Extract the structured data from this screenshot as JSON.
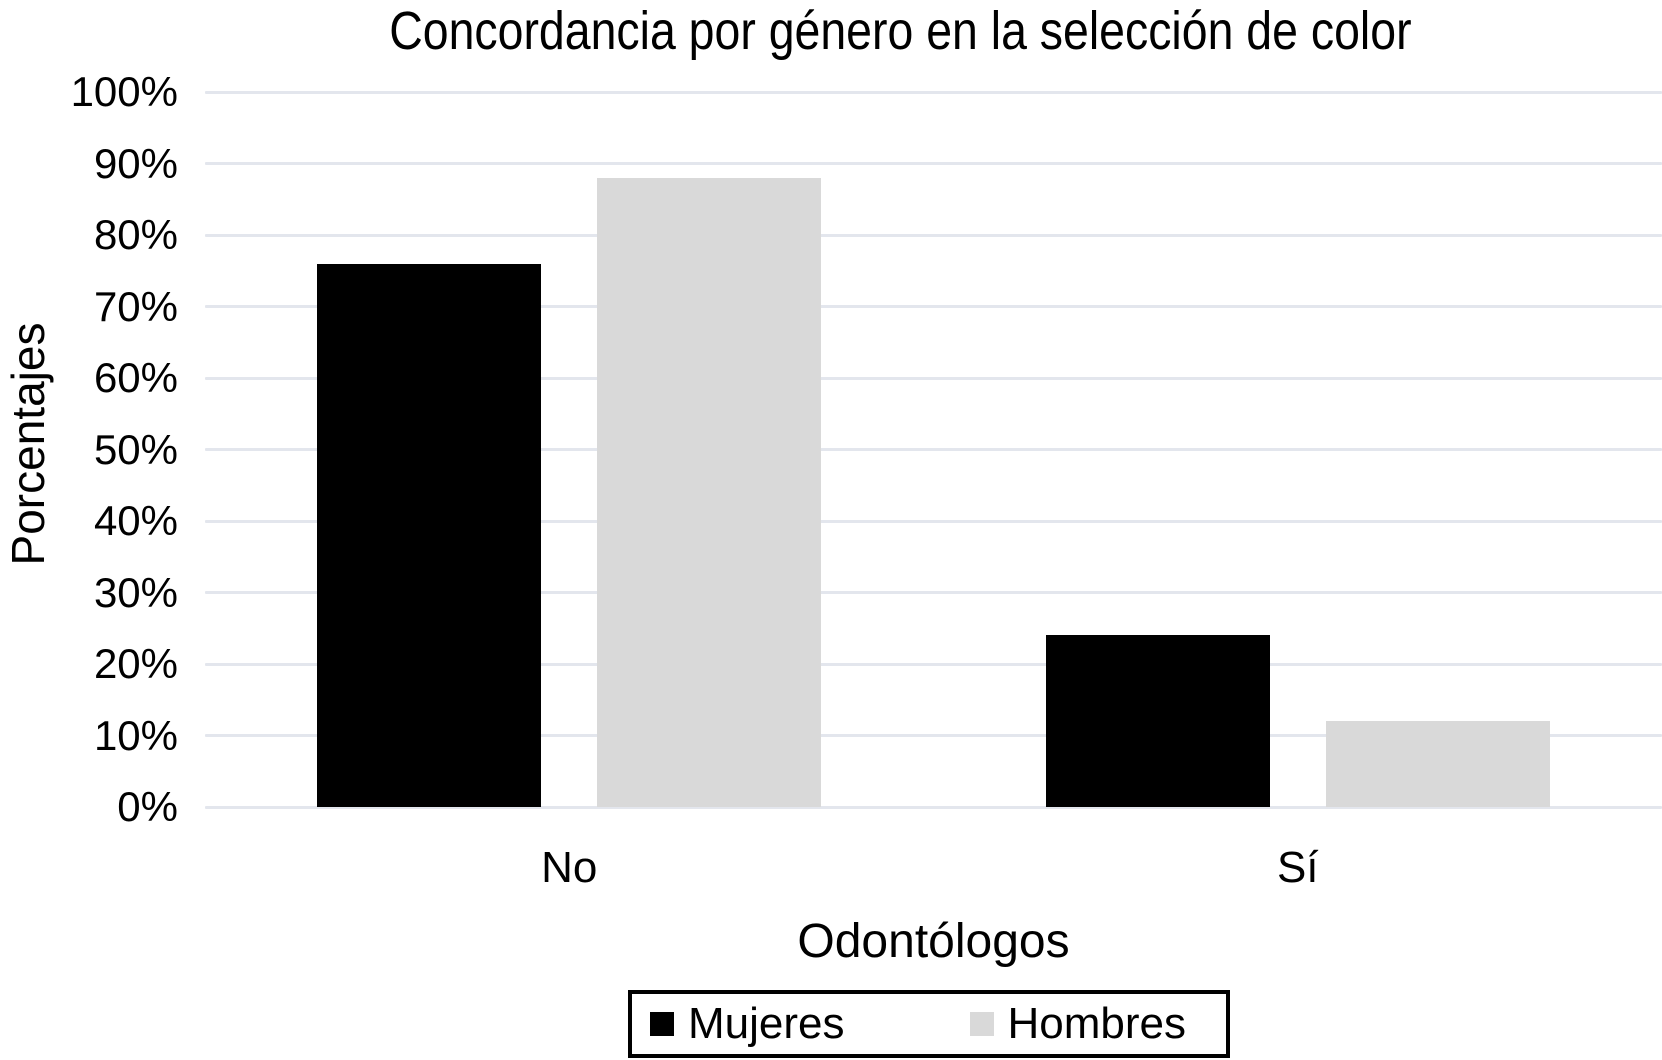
{
  "chart_data": {
    "type": "bar",
    "title": "Concordancia por género en la selección de color",
    "xlabel": "Odontólogos",
    "ylabel": "Porcentajes",
    "categories": [
      "No",
      "Sí"
    ],
    "series": [
      {
        "name": "Mujeres",
        "color": "#000000",
        "values": [
          76,
          24
        ]
      },
      {
        "name": "Hombres",
        "color": "#d9d9d9",
        "values": [
          88,
          12
        ]
      }
    ],
    "ylim": [
      0,
      100
    ],
    "y_tick_step": 10,
    "y_ticks": [
      "0%",
      "10%",
      "20%",
      "30%",
      "40%",
      "50%",
      "60%",
      "70%",
      "80%",
      "90%",
      "100%"
    ],
    "grid": "horizontal",
    "gridline_color": "#e3e6ed",
    "background": "#ffffff",
    "text_color": "#000000",
    "legend_position": "bottom",
    "legend_border_color": "#000000"
  }
}
